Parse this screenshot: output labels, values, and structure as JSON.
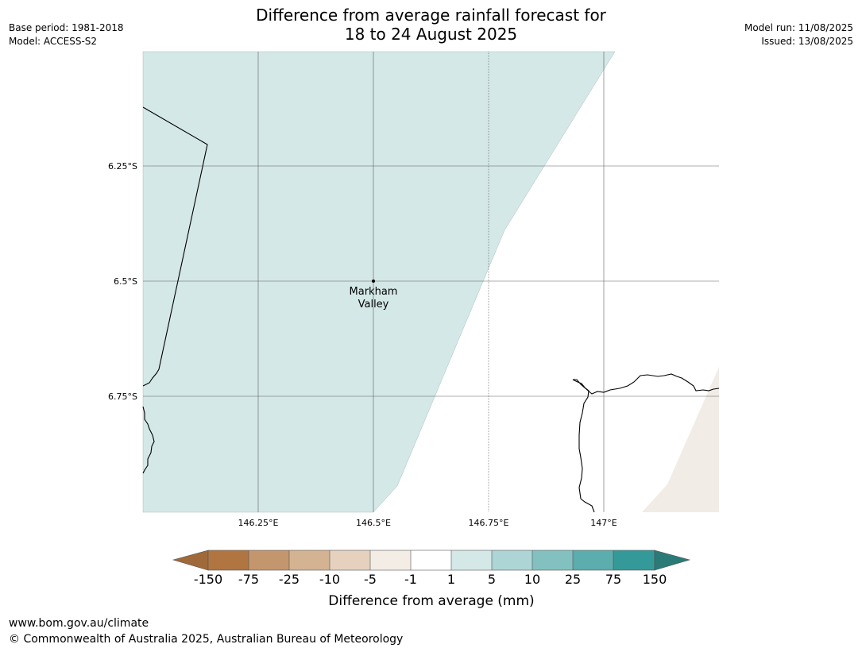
{
  "title": {
    "line1": "Difference from average rainfall forecast for",
    "line2": "18 to 24 August 2025"
  },
  "meta_left": {
    "base_period": "Base period: 1981-2018",
    "model": "Model: ACCESS-S2"
  },
  "meta_right": {
    "model_run": "Model run: 11/08/2025",
    "issued": "Issued: 13/08/2025"
  },
  "map": {
    "lat_ticks": [
      "6.25°S",
      "6.5°S",
      "6.75°S"
    ],
    "lon_ticks": [
      "146.25°E",
      "146.5°E",
      "146.75°E",
      "147°E"
    ],
    "place": {
      "name_line1": "Markham",
      "name_line2": "Valley"
    }
  },
  "legend": {
    "title": "Difference from average (mm)",
    "tick_labels": [
      "-150",
      "-75",
      "-25",
      "-10",
      "-5",
      "-1",
      "1",
      "5",
      "10",
      "25",
      "75",
      "150"
    ],
    "colors": [
      "#a0693a",
      "#b07540",
      "#c3966d",
      "#d4b392",
      "#e5d1bd",
      "#f3ede6",
      "#ffffff",
      "#d4e8e7",
      "#aed5d6",
      "#82c1c0",
      "#5cadad",
      "#339a99",
      "#2a7a78"
    ]
  },
  "footer": {
    "url": "www.bom.gov.au/climate",
    "copyright": "© Commonwealth of Australia 2025, Australian Bureau of Meteorology"
  }
}
